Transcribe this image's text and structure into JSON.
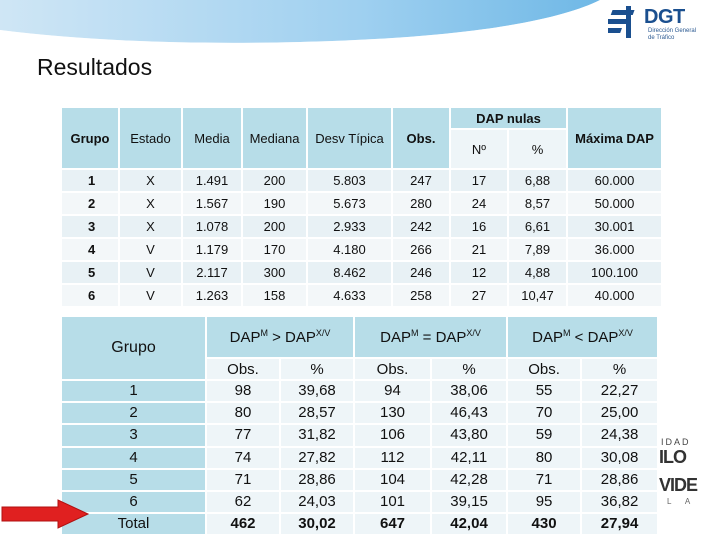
{
  "header": {
    "brand": "DGT",
    "subtitle_line1": "Dirección General",
    "subtitle_line2": "de Tráfico",
    "accent": "#1a4f8f"
  },
  "page_title": "Resultados",
  "table1": {
    "col_grupo": "Grupo",
    "col_estado": "Estado",
    "col_media": "Media",
    "col_mediana": "Mediana",
    "col_desv": "Desv Típica",
    "col_obs": "Obs.",
    "col_dap_nulas": "DAP nulas",
    "col_n": "Nº",
    "col_pct": "%",
    "col_max": "Máxima DAP",
    "rows": [
      {
        "grupo": "1",
        "estado": "X",
        "media": "1.491",
        "mediana": "200",
        "desv": "5.803",
        "obs": "247",
        "n": "17",
        "pct": "6,88",
        "max": "60.000"
      },
      {
        "grupo": "2",
        "estado": "X",
        "media": "1.567",
        "mediana": "190",
        "desv": "5.673",
        "obs": "280",
        "n": "24",
        "pct": "8,57",
        "max": "50.000"
      },
      {
        "grupo": "3",
        "estado": "X",
        "media": "1.078",
        "mediana": "200",
        "desv": "2.933",
        "obs": "242",
        "n": "16",
        "pct": "6,61",
        "max": "30.001"
      },
      {
        "grupo": "4",
        "estado": "V",
        "media": "1.179",
        "mediana": "170",
        "desv": "4.180",
        "obs": "266",
        "n": "21",
        "pct": "7,89",
        "max": "36.000"
      },
      {
        "grupo": "5",
        "estado": "V",
        "media": "2.117",
        "mediana": "300",
        "desv": "8.462",
        "obs": "246",
        "n": "12",
        "pct": "4,88",
        "max": "100.100"
      },
      {
        "grupo": "6",
        "estado": "V",
        "media": "1.263",
        "mediana": "158",
        "desv": "4.633",
        "obs": "258",
        "n": "27",
        "pct": "10,47",
        "max": "40.000"
      }
    ]
  },
  "table2": {
    "col_grupo": "Grupo",
    "h_gt_base": "DAP",
    "h_gt_sup1": "M",
    "h_gt_mid": " > DAP",
    "h_gt_sup2": "X/V",
    "h_eq_base": "DAP",
    "h_eq_sup1": "M",
    "h_eq_mid": " = DAP",
    "h_eq_sup2": "X/V",
    "h_lt_base": "DAP",
    "h_lt_sup1": "M",
    "h_lt_mid": " < DAP",
    "h_lt_sup2": "X/V",
    "sub_obs": "Obs.",
    "sub_pct": "%",
    "rows": [
      {
        "grupo": "1",
        "gt_obs": "98",
        "gt_pct": "39,68",
        "eq_obs": "94",
        "eq_pct": "38,06",
        "lt_obs": "55",
        "lt_pct": "22,27"
      },
      {
        "grupo": "2",
        "gt_obs": "80",
        "gt_pct": "28,57",
        "eq_obs": "130",
        "eq_pct": "46,43",
        "lt_obs": "70",
        "lt_pct": "25,00"
      },
      {
        "grupo": "3",
        "gt_obs": "77",
        "gt_pct": "31,82",
        "eq_obs": "106",
        "eq_pct": "43,80",
        "lt_obs": "59",
        "lt_pct": "24,38"
      },
      {
        "grupo": "4",
        "gt_obs": "74",
        "gt_pct": "27,82",
        "eq_obs": "112",
        "eq_pct": "42,11",
        "lt_obs": "80",
        "lt_pct": "30,08"
      },
      {
        "grupo": "5",
        "gt_obs": "71",
        "gt_pct": "28,86",
        "eq_obs": "104",
        "eq_pct": "42,28",
        "lt_obs": "71",
        "lt_pct": "28,86"
      },
      {
        "grupo": "6",
        "gt_obs": "62",
        "gt_pct": "24,03",
        "eq_obs": "101",
        "eq_pct": "39,15",
        "lt_obs": "95",
        "lt_pct": "36,82"
      }
    ],
    "total": {
      "grupo": "Total",
      "gt_obs": "462",
      "gt_pct": "30,02",
      "eq_obs": "647",
      "eq_pct": "42,04",
      "lt_obs": "430",
      "lt_pct": "27,94"
    }
  },
  "decor": {
    "line1": "IDAD",
    "line2": "ILO",
    "line3": "VIDE",
    "line4": "L A"
  },
  "colors": {
    "header_cell": "#b7dde8",
    "body_cell": "#eef5f8",
    "arrow": "#e02020",
    "banner_blue": "#8ec7ea"
  }
}
